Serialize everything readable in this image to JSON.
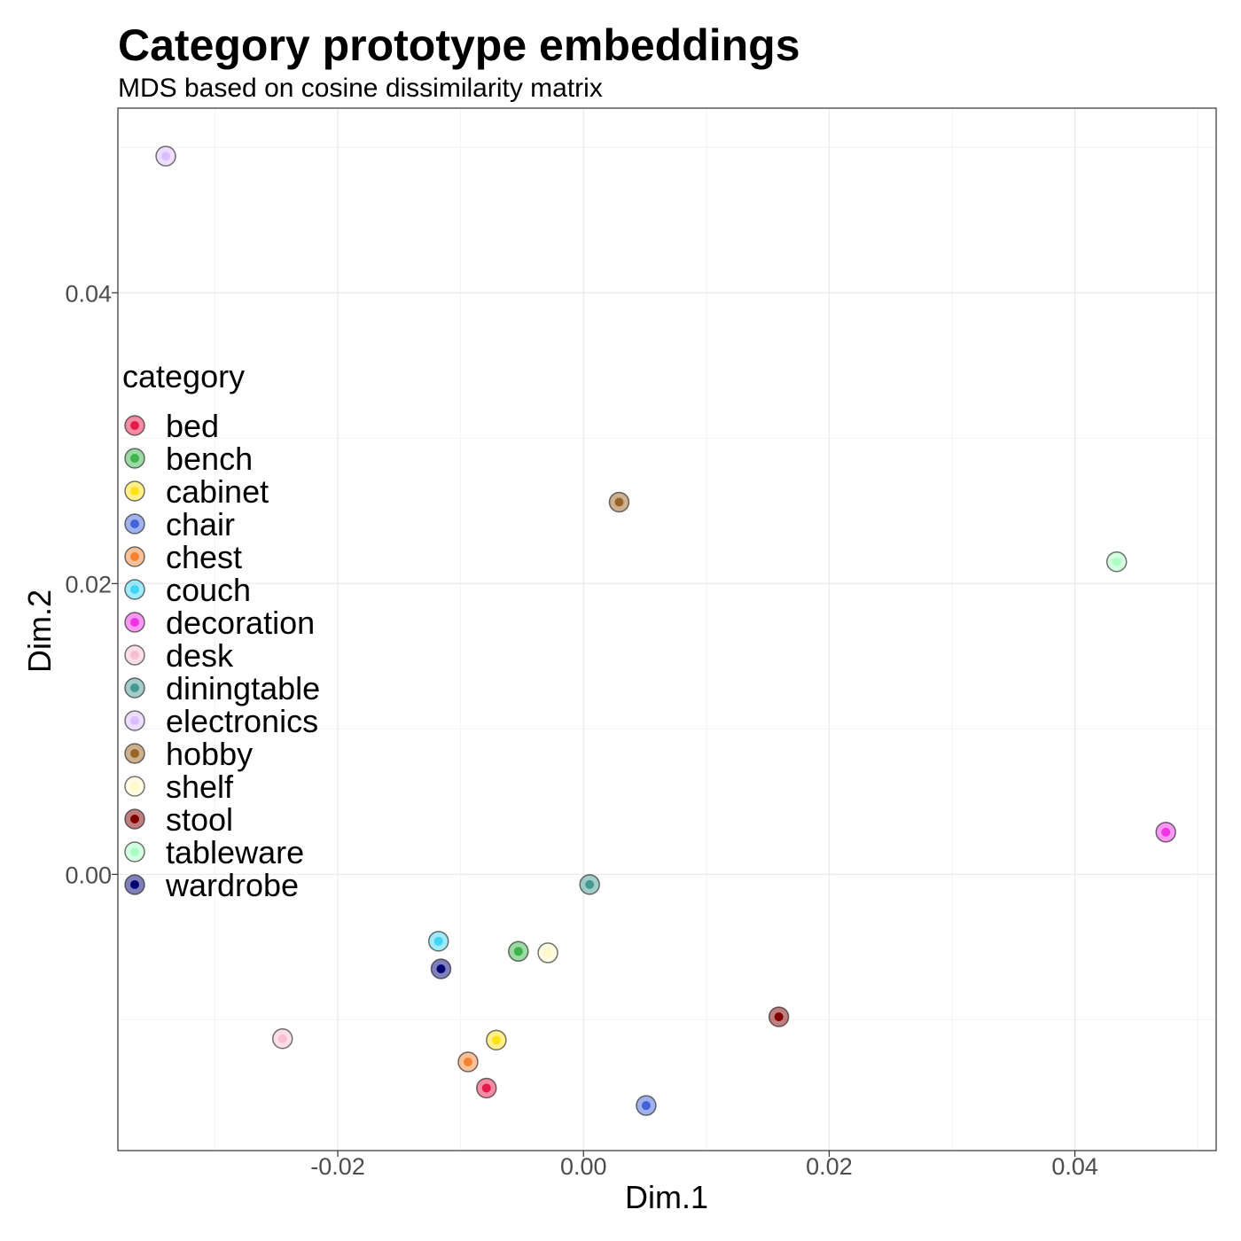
{
  "chart_data": {
    "type": "scatter",
    "title": "Category prototype embeddings",
    "subtitle": "MDS based on cosine dissimilarity matrix",
    "xlabel": "Dim.1",
    "ylabel": "Dim.2",
    "xlim": [
      -0.0379,
      0.0515
    ],
    "ylim": [
      -0.019,
      0.0527
    ],
    "x_ticks": [
      -0.02,
      0.0,
      0.02,
      0.04
    ],
    "x_tick_labels": [
      "-0.02",
      "0.00",
      "0.02",
      "0.04"
    ],
    "y_ticks": [
      0.0,
      0.02,
      0.04
    ],
    "y_tick_labels": [
      "0.00",
      "0.02",
      "0.04"
    ],
    "grid": true,
    "legend": {
      "title": "category",
      "position": "left-inside"
    },
    "points": [
      {
        "category": "bed",
        "x": -0.0079,
        "y": -0.0147,
        "color": "#e6194b"
      },
      {
        "category": "bench",
        "x": -0.0053,
        "y": -0.0053,
        "color": "#3cb44b"
      },
      {
        "category": "cabinet",
        "x": -0.0071,
        "y": -0.0114,
        "color": "#ffe119"
      },
      {
        "category": "chair",
        "x": 0.0051,
        "y": -0.0159,
        "color": "#4363d8"
      },
      {
        "category": "chest",
        "x": -0.0094,
        "y": -0.0129,
        "color": "#f58231"
      },
      {
        "category": "couch",
        "x": -0.0118,
        "y": -0.0046,
        "color": "#42d4f4"
      },
      {
        "category": "decoration",
        "x": 0.0474,
        "y": 0.0029,
        "color": "#f032e6"
      },
      {
        "category": "desk",
        "x": -0.0245,
        "y": -0.0113,
        "color": "#fabed4"
      },
      {
        "category": "diningtable",
        "x": 0.0005,
        "y": -0.0007,
        "color": "#469990"
      },
      {
        "category": "electronics",
        "x": -0.034,
        "y": 0.0494,
        "color": "#dcbeff"
      },
      {
        "category": "hobby",
        "x": 0.0029,
        "y": 0.0256,
        "color": "#9a6324"
      },
      {
        "category": "shelf",
        "x": -0.0029,
        "y": -0.0054,
        "color": "#fffac8"
      },
      {
        "category": "stool",
        "x": 0.0159,
        "y": -0.0098,
        "color": "#800000"
      },
      {
        "category": "tableware",
        "x": 0.0434,
        "y": 0.0215,
        "color": "#aaffc3"
      },
      {
        "category": "wardrobe",
        "x": -0.0116,
        "y": -0.0065,
        "color": "#000075"
      }
    ]
  }
}
